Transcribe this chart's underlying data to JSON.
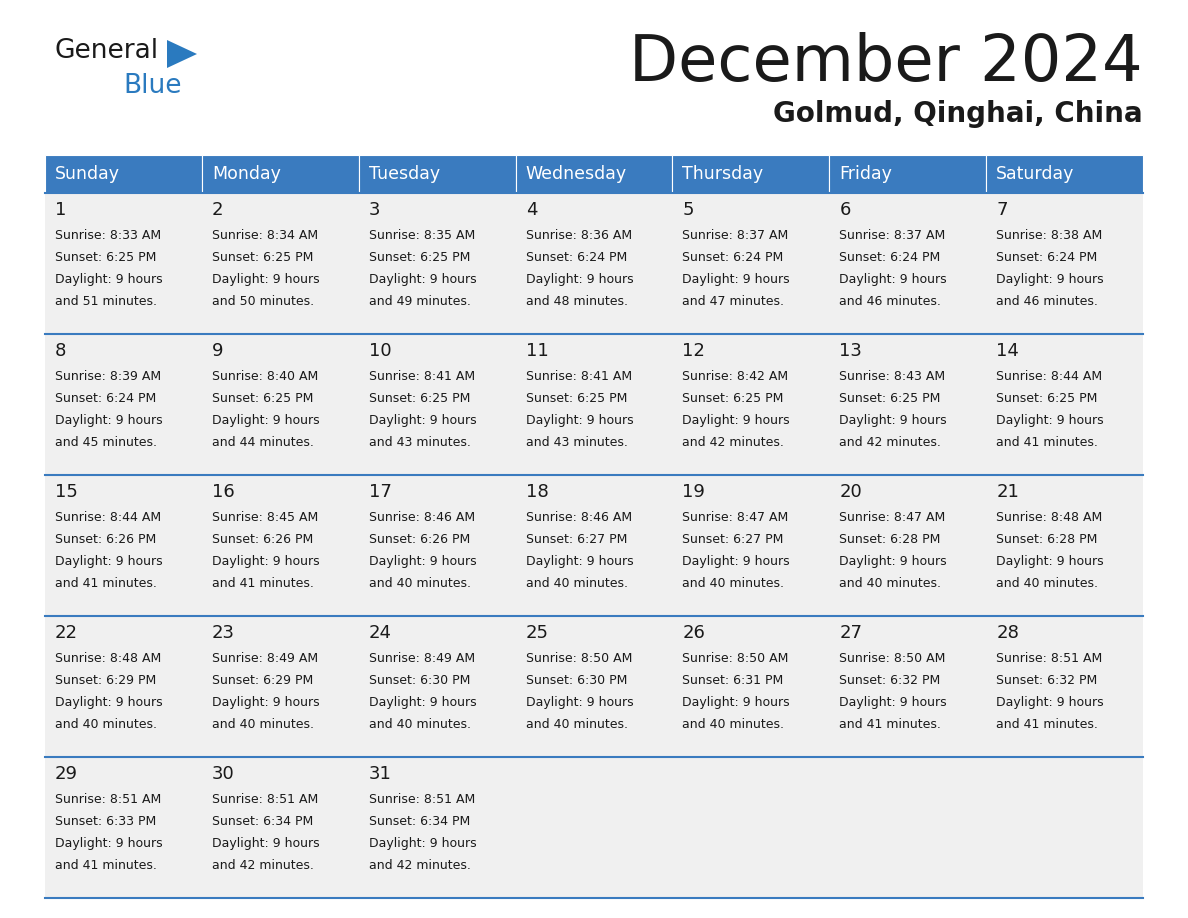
{
  "title": "December 2024",
  "subtitle": "Golmud, Qinghai, China",
  "header_color": "#3a7bbf",
  "header_text_color": "#ffffff",
  "bg_color": "#ffffff",
  "cell_bg_color": "#f0f0f0",
  "text_color": "#1a1a1a",
  "separator_color": "#3a7bbf",
  "day_headers": [
    "Sunday",
    "Monday",
    "Tuesday",
    "Wednesday",
    "Thursday",
    "Friday",
    "Saturday"
  ],
  "days": [
    {
      "day": 1,
      "sunrise": "8:33 AM",
      "sunset": "6:25 PM",
      "daylight": "9 hours and 51 minutes."
    },
    {
      "day": 2,
      "sunrise": "8:34 AM",
      "sunset": "6:25 PM",
      "daylight": "9 hours and 50 minutes."
    },
    {
      "day": 3,
      "sunrise": "8:35 AM",
      "sunset": "6:25 PM",
      "daylight": "9 hours and 49 minutes."
    },
    {
      "day": 4,
      "sunrise": "8:36 AM",
      "sunset": "6:24 PM",
      "daylight": "9 hours and 48 minutes."
    },
    {
      "day": 5,
      "sunrise": "8:37 AM",
      "sunset": "6:24 PM",
      "daylight": "9 hours and 47 minutes."
    },
    {
      "day": 6,
      "sunrise": "8:37 AM",
      "sunset": "6:24 PM",
      "daylight": "9 hours and 46 minutes."
    },
    {
      "day": 7,
      "sunrise": "8:38 AM",
      "sunset": "6:24 PM",
      "daylight": "9 hours and 46 minutes."
    },
    {
      "day": 8,
      "sunrise": "8:39 AM",
      "sunset": "6:24 PM",
      "daylight": "9 hours and 45 minutes."
    },
    {
      "day": 9,
      "sunrise": "8:40 AM",
      "sunset": "6:25 PM",
      "daylight": "9 hours and 44 minutes."
    },
    {
      "day": 10,
      "sunrise": "8:41 AM",
      "sunset": "6:25 PM",
      "daylight": "9 hours and 43 minutes."
    },
    {
      "day": 11,
      "sunrise": "8:41 AM",
      "sunset": "6:25 PM",
      "daylight": "9 hours and 43 minutes."
    },
    {
      "day": 12,
      "sunrise": "8:42 AM",
      "sunset": "6:25 PM",
      "daylight": "9 hours and 42 minutes."
    },
    {
      "day": 13,
      "sunrise": "8:43 AM",
      "sunset": "6:25 PM",
      "daylight": "9 hours and 42 minutes."
    },
    {
      "day": 14,
      "sunrise": "8:44 AM",
      "sunset": "6:25 PM",
      "daylight": "9 hours and 41 minutes."
    },
    {
      "day": 15,
      "sunrise": "8:44 AM",
      "sunset": "6:26 PM",
      "daylight": "9 hours and 41 minutes."
    },
    {
      "day": 16,
      "sunrise": "8:45 AM",
      "sunset": "6:26 PM",
      "daylight": "9 hours and 41 minutes."
    },
    {
      "day": 17,
      "sunrise": "8:46 AM",
      "sunset": "6:26 PM",
      "daylight": "9 hours and 40 minutes."
    },
    {
      "day": 18,
      "sunrise": "8:46 AM",
      "sunset": "6:27 PM",
      "daylight": "9 hours and 40 minutes."
    },
    {
      "day": 19,
      "sunrise": "8:47 AM",
      "sunset": "6:27 PM",
      "daylight": "9 hours and 40 minutes."
    },
    {
      "day": 20,
      "sunrise": "8:47 AM",
      "sunset": "6:28 PM",
      "daylight": "9 hours and 40 minutes."
    },
    {
      "day": 21,
      "sunrise": "8:48 AM",
      "sunset": "6:28 PM",
      "daylight": "9 hours and 40 minutes."
    },
    {
      "day": 22,
      "sunrise": "8:48 AM",
      "sunset": "6:29 PM",
      "daylight": "9 hours and 40 minutes."
    },
    {
      "day": 23,
      "sunrise": "8:49 AM",
      "sunset": "6:29 PM",
      "daylight": "9 hours and 40 minutes."
    },
    {
      "day": 24,
      "sunrise": "8:49 AM",
      "sunset": "6:30 PM",
      "daylight": "9 hours and 40 minutes."
    },
    {
      "day": 25,
      "sunrise": "8:50 AM",
      "sunset": "6:30 PM",
      "daylight": "9 hours and 40 minutes."
    },
    {
      "day": 26,
      "sunrise": "8:50 AM",
      "sunset": "6:31 PM",
      "daylight": "9 hours and 40 minutes."
    },
    {
      "day": 27,
      "sunrise": "8:50 AM",
      "sunset": "6:32 PM",
      "daylight": "9 hours and 41 minutes."
    },
    {
      "day": 28,
      "sunrise": "8:51 AM",
      "sunset": "6:32 PM",
      "daylight": "9 hours and 41 minutes."
    },
    {
      "day": 29,
      "sunrise": "8:51 AM",
      "sunset": "6:33 PM",
      "daylight": "9 hours and 41 minutes."
    },
    {
      "day": 30,
      "sunrise": "8:51 AM",
      "sunset": "6:34 PM",
      "daylight": "9 hours and 42 minutes."
    },
    {
      "day": 31,
      "sunrise": "8:51 AM",
      "sunset": "6:34 PM",
      "daylight": "9 hours and 42 minutes."
    }
  ],
  "weeks": [
    [
      1,
      2,
      3,
      4,
      5,
      6,
      7
    ],
    [
      8,
      9,
      10,
      11,
      12,
      13,
      14
    ],
    [
      15,
      16,
      17,
      18,
      19,
      20,
      21
    ],
    [
      22,
      23,
      24,
      25,
      26,
      27,
      28
    ],
    [
      29,
      30,
      31,
      null,
      null,
      null,
      null
    ]
  ]
}
